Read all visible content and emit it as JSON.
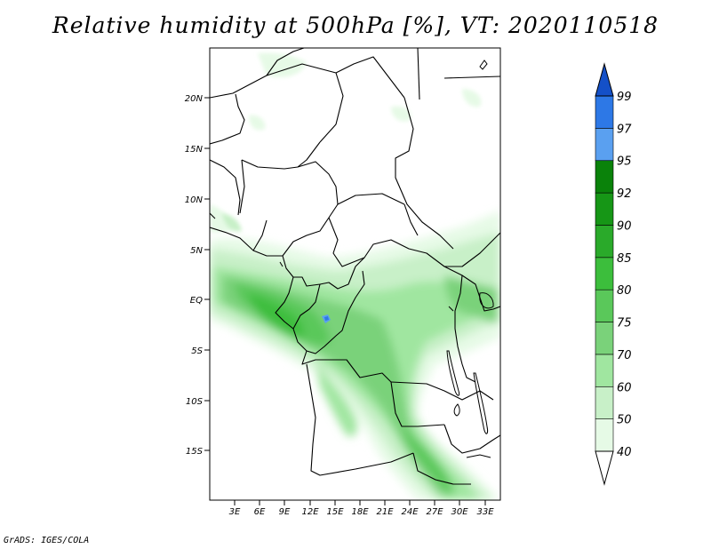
{
  "title": "Relative humidity at 500hPa [%], VT: 2020110518",
  "credit": "GrADS: IGES/COLA",
  "lat_labels": [
    "20N",
    "15N",
    "10N",
    "5N",
    "EQ",
    "5S",
    "10S",
    "15S"
  ],
  "lon_labels": [
    "3E",
    "6E",
    "9E",
    "12E",
    "15E",
    "18E",
    "21E",
    "24E",
    "27E",
    "30E",
    "33E"
  ],
  "colorbar": {
    "levels": [
      "40",
      "50",
      "60",
      "70",
      "75",
      "80",
      "85",
      "90",
      "92",
      "95",
      "97",
      "99"
    ],
    "colors": [
      "#e6fae6",
      "#c8f0c8",
      "#a0e6a0",
      "#7ad27a",
      "#5ac85a",
      "#3cbe3c",
      "#2aaa2a",
      "#169616",
      "#0a820a",
      "#5aa0f0",
      "#2d78e6",
      "#1450c8"
    ]
  }
}
